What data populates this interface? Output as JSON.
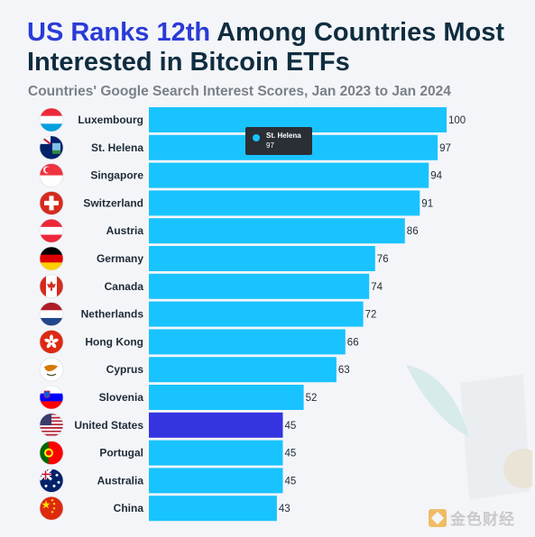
{
  "header": {
    "title_highlight": "US Ranks 12th",
    "title_rest": "Among Countries Most Interested in Bitcoin ETFs",
    "subtitle": "Countries' Google Search Interest Scores, Jan 2023 to Jan 2024"
  },
  "tooltip": {
    "label": "St. Helena",
    "value": "97"
  },
  "watermark": {
    "text": "金色财经"
  },
  "colors": {
    "bar": "#19c3ff",
    "highlight_bar": "#3434e0",
    "title": "#0f2d3f",
    "title_highlight": "#2b3bd6"
  },
  "chart_data": {
    "type": "bar",
    "orientation": "horizontal",
    "categories": [
      "Luxembourg",
      "St. Helena",
      "Singapore",
      "Switzerland",
      "Austria",
      "Germany",
      "Canada",
      "Netherlands",
      "Hong Kong",
      "Cyprus",
      "Slovenia",
      "United States",
      "Portugal",
      "Australia",
      "China"
    ],
    "values": [
      100,
      97,
      94,
      91,
      86,
      76,
      74,
      72,
      66,
      63,
      52,
      45,
      45,
      45,
      43
    ],
    "highlight": "United States",
    "xlim": [
      0,
      100
    ],
    "title": "US Ranks 12th Among Countries Most Interested in Bitcoin ETFs",
    "subtitle": "Countries' Google Search Interest Scores, Jan 2023 to Jan 2024",
    "legend": "none",
    "grid": false,
    "flags": [
      "luxembourg-flag",
      "st-helena-flag",
      "singapore-flag",
      "switzerland-flag",
      "austria-flag",
      "germany-flag",
      "canada-flag",
      "netherlands-flag",
      "hong-kong-flag",
      "cyprus-flag",
      "slovenia-flag",
      "united-states-flag",
      "portugal-flag",
      "australia-flag",
      "china-flag"
    ]
  }
}
